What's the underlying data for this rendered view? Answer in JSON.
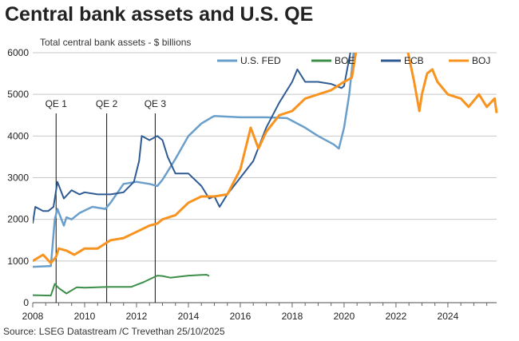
{
  "title": "Central bank assets and U.S. QE",
  "subtitle": "Total central bank assets - $ billions",
  "source": "Source: LSEG Datastream /C Trevethan 25/10/2025",
  "chart_data": {
    "type": "line",
    "title": "Central bank assets and U.S. QE",
    "ylabel": "Total central bank assets - $ billions",
    "xlim": [
      2008,
      2025.88
    ],
    "ylim": [
      0,
      6000
    ],
    "xticks": [
      2008,
      2010,
      2012,
      2014,
      2016,
      2018,
      2020,
      2022,
      2024
    ],
    "yticks": [
      0,
      1000,
      2000,
      3000,
      4000,
      5000,
      6000
    ],
    "grid": true,
    "legend": "top-right",
    "annotations": [
      {
        "label": "QE 1",
        "x": 2008.9
      },
      {
        "label": "QE 2",
        "x": 2010.85
      },
      {
        "label": "QE 3",
        "x": 2012.72
      }
    ],
    "series": [
      {
        "name": "U.S. FED",
        "color": "#6a9fcb",
        "width": 2.5,
        "points": [
          [
            2008,
            860
          ],
          [
            2008.7,
            880
          ],
          [
            2008.85,
            2000
          ],
          [
            2008.95,
            2250
          ],
          [
            2009.2,
            1850
          ],
          [
            2009.3,
            2050
          ],
          [
            2009.5,
            2000
          ],
          [
            2009.8,
            2150
          ],
          [
            2010.3,
            2300
          ],
          [
            2010.8,
            2250
          ],
          [
            2011,
            2400
          ],
          [
            2011.5,
            2850
          ],
          [
            2012,
            2900
          ],
          [
            2012.5,
            2850
          ],
          [
            2012.8,
            2800
          ],
          [
            2013,
            2950
          ],
          [
            2013.5,
            3450
          ],
          [
            2014,
            4000
          ],
          [
            2014.5,
            4300
          ],
          [
            2014.9,
            4450
          ],
          [
            2015,
            4480
          ],
          [
            2016,
            4450
          ],
          [
            2017,
            4450
          ],
          [
            2017.8,
            4430
          ],
          [
            2018.5,
            4200
          ],
          [
            2019,
            4000
          ],
          [
            2019.6,
            3800
          ],
          [
            2019.8,
            3700
          ],
          [
            2020,
            4200
          ],
          [
            2020.2,
            5000
          ],
          [
            2020.4,
            6200
          ],
          [
            2021,
            8000
          ]
        ]
      },
      {
        "name": "BOE",
        "color": "#3d8f4a",
        "width": 2,
        "points": [
          [
            2008,
            180
          ],
          [
            2008.7,
            170
          ],
          [
            2008.85,
            450
          ],
          [
            2009,
            350
          ],
          [
            2009.3,
            220
          ],
          [
            2009.7,
            370
          ],
          [
            2010,
            360
          ],
          [
            2011,
            380
          ],
          [
            2011.8,
            380
          ],
          [
            2012.3,
            500
          ],
          [
            2012.8,
            650
          ],
          [
            2013,
            640
          ],
          [
            2013.3,
            600
          ],
          [
            2014,
            650
          ],
          [
            2014.7,
            670
          ],
          [
            2014.8,
            640
          ]
        ]
      },
      {
        "name": "ECB",
        "color": "#2f5b94",
        "width": 2,
        "points": [
          [
            2008,
            1900
          ],
          [
            2008.1,
            2300
          ],
          [
            2008.4,
            2200
          ],
          [
            2008.6,
            2200
          ],
          [
            2008.8,
            2300
          ],
          [
            2008.95,
            2900
          ],
          [
            2009.2,
            2500
          ],
          [
            2009.5,
            2700
          ],
          [
            2009.8,
            2600
          ],
          [
            2010,
            2650
          ],
          [
            2010.5,
            2600
          ],
          [
            2011,
            2600
          ],
          [
            2011.5,
            2650
          ],
          [
            2011.9,
            2900
          ],
          [
            2012.1,
            3400
          ],
          [
            2012.2,
            4000
          ],
          [
            2012.5,
            3900
          ],
          [
            2012.8,
            4000
          ],
          [
            2013,
            3900
          ],
          [
            2013.2,
            3500
          ],
          [
            2013.5,
            3100
          ],
          [
            2014,
            3100
          ],
          [
            2014.5,
            2800
          ],
          [
            2014.8,
            2500
          ],
          [
            2015,
            2550
          ],
          [
            2015.2,
            2300
          ],
          [
            2015.5,
            2600
          ],
          [
            2016,
            3000
          ],
          [
            2016.5,
            3400
          ],
          [
            2017,
            4200
          ],
          [
            2017.5,
            4800
          ],
          [
            2018,
            5300
          ],
          [
            2018.2,
            5600
          ],
          [
            2018.5,
            5300
          ],
          [
            2019,
            5300
          ],
          [
            2019.5,
            5250
          ],
          [
            2019.9,
            5150
          ],
          [
            2020,
            5200
          ],
          [
            2020.3,
            6200
          ],
          [
            2021,
            8000
          ]
        ]
      },
      {
        "name": "BOJ",
        "color": "#f7931e",
        "width": 3,
        "points": [
          [
            2008,
            1000
          ],
          [
            2008.4,
            1150
          ],
          [
            2008.7,
            950
          ],
          [
            2008.9,
            1100
          ],
          [
            2009,
            1300
          ],
          [
            2009.3,
            1250
          ],
          [
            2009.6,
            1150
          ],
          [
            2010,
            1300
          ],
          [
            2010.5,
            1300
          ],
          [
            2011,
            1500
          ],
          [
            2011.5,
            1550
          ],
          [
            2012,
            1700
          ],
          [
            2012.5,
            1850
          ],
          [
            2012.8,
            1900
          ],
          [
            2013,
            2000
          ],
          [
            2013.5,
            2100
          ],
          [
            2014,
            2400
          ],
          [
            2014.5,
            2550
          ],
          [
            2015,
            2550
          ],
          [
            2015.5,
            2600
          ],
          [
            2016,
            3200
          ],
          [
            2016.4,
            4200
          ],
          [
            2016.7,
            3700
          ],
          [
            2017,
            4100
          ],
          [
            2017.5,
            4500
          ],
          [
            2018,
            4600
          ],
          [
            2018.5,
            4900
          ],
          [
            2019,
            5000
          ],
          [
            2019.5,
            5100
          ],
          [
            2020,
            5300
          ],
          [
            2020.3,
            5400
          ],
          [
            2020.5,
            6200
          ],
          [
            2021,
            7000
          ],
          [
            2022,
            7000
          ],
          [
            2022.4,
            6200
          ],
          [
            2022.7,
            5300
          ],
          [
            2022.9,
            4600
          ],
          [
            2023,
            5000
          ],
          [
            2023.2,
            5500
          ],
          [
            2023.4,
            5600
          ],
          [
            2023.6,
            5300
          ],
          [
            2024,
            5000
          ],
          [
            2024.5,
            4900
          ],
          [
            2024.8,
            4700
          ],
          [
            2025.2,
            5000
          ],
          [
            2025.5,
            4700
          ],
          [
            2025.8,
            4900
          ],
          [
            2025.88,
            4550
          ]
        ]
      }
    ]
  }
}
